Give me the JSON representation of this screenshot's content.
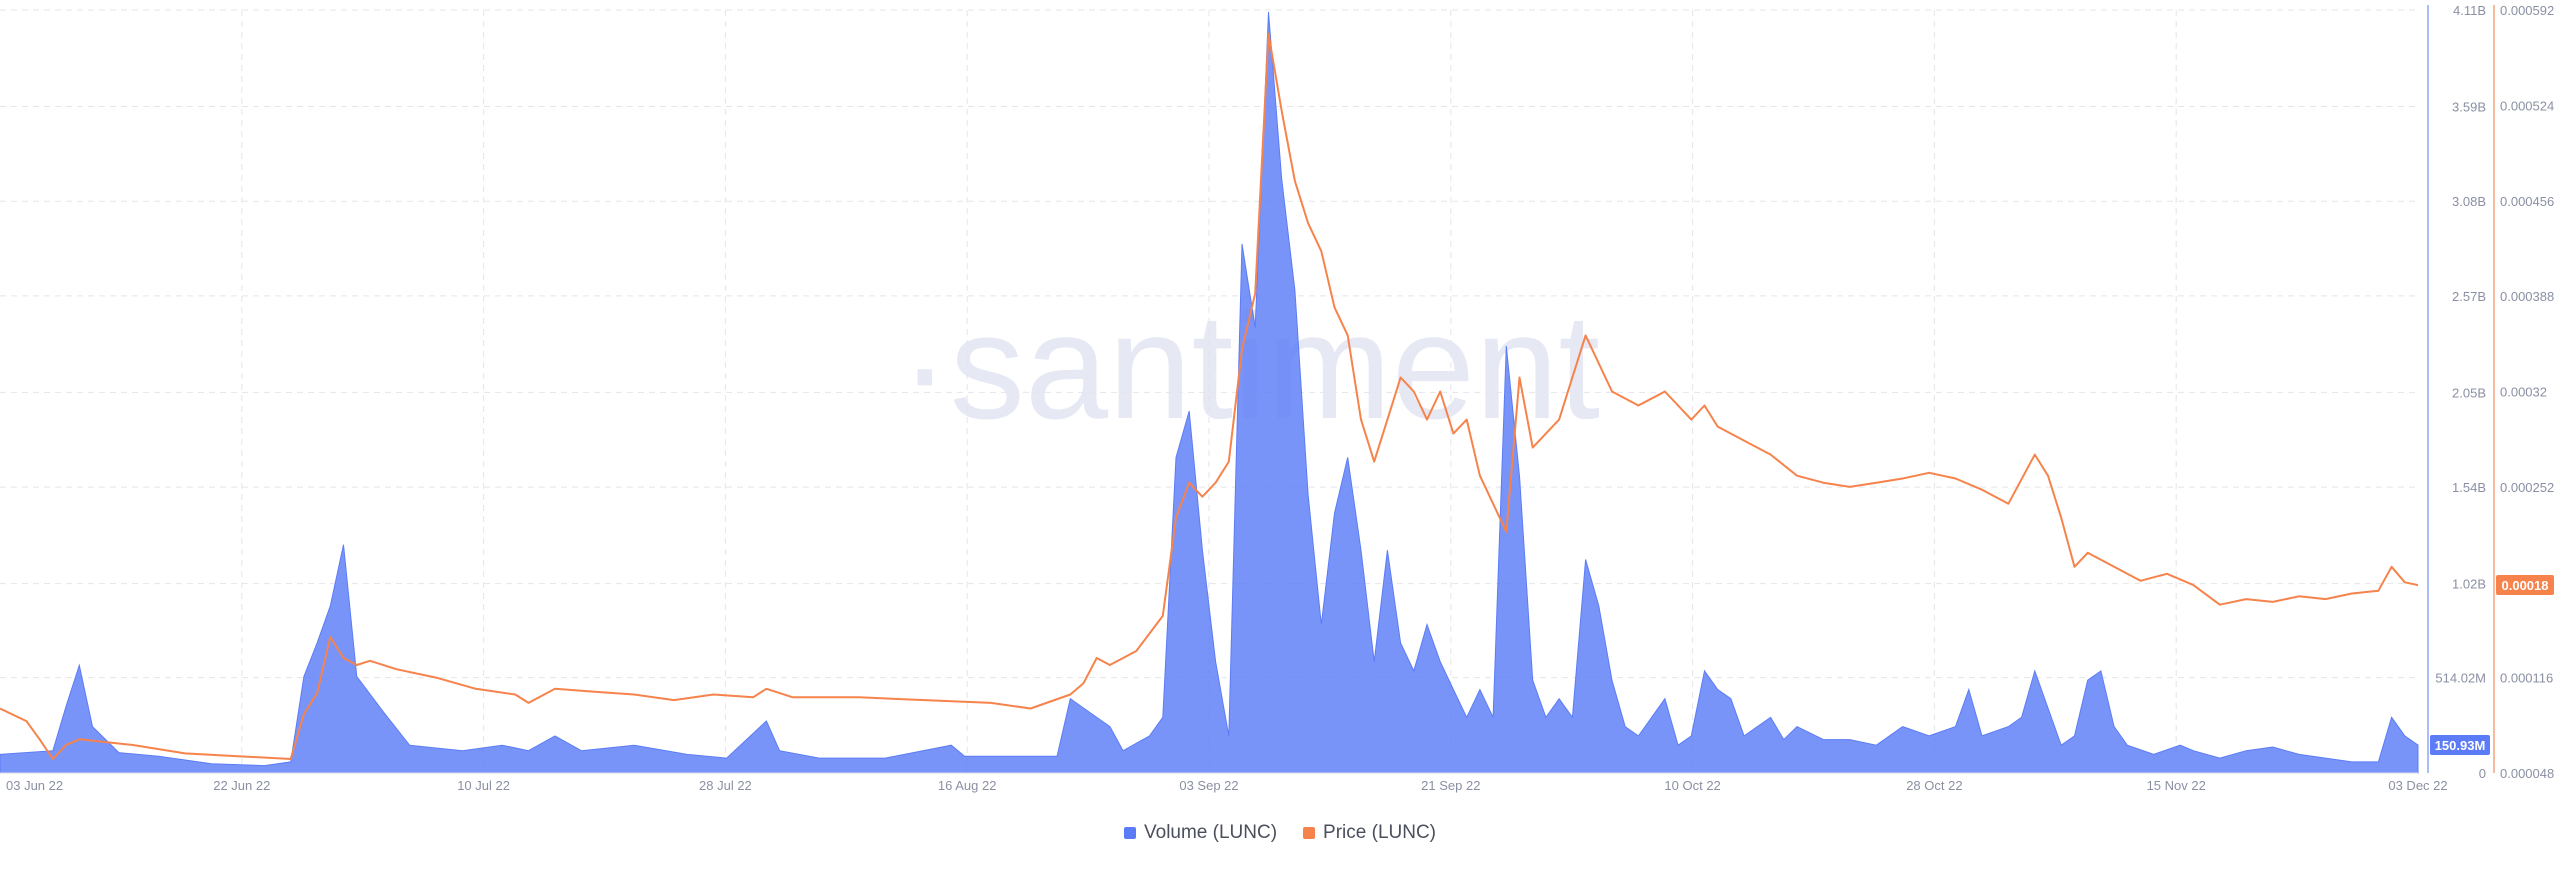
{
  "watermark": "·santiment",
  "chart_data": {
    "type": "area",
    "dual_axis": true,
    "x_tick_labels": [
      "03 Jun 22",
      "22 Jun 22",
      "10 Jul 22",
      "28 Jul 22",
      "16 Aug 22",
      "03 Sep 22",
      "21 Sep 22",
      "10 Oct 22",
      "28 Oct 22",
      "15 Nov 22",
      "03 Dec 22"
    ],
    "x_range": [
      0,
      183
    ],
    "volume_axis": {
      "side": "right-inner",
      "ticks": [
        0,
        514020000,
        1020000000,
        1540000000,
        2050000000,
        2570000000,
        3080000000,
        3590000000,
        4110000000
      ],
      "tick_labels": [
        "0",
        "514.02M",
        "1.02B",
        "1.54B",
        "2.05B",
        "2.57B",
        "3.08B",
        "3.59B",
        "4.11B"
      ],
      "ylim": [
        0,
        4110000000
      ]
    },
    "price_axis": {
      "side": "right-outer",
      "ticks": [
        4.8e-05,
        0.000116,
        0.000184,
        0.000252,
        0.00032,
        0.000388,
        0.000456,
        0.000524,
        0.000592
      ],
      "tick_labels": [
        "0.000048",
        "0.000116",
        "",
        "0.000252",
        "0.00032",
        "0.000388",
        "0.000456",
        "0.000524",
        "0.000592"
      ],
      "ylim": [
        4.8e-05,
        0.000592
      ]
    },
    "grid": true,
    "legend_position": "bottom-center",
    "series": [
      {
        "name": "Volume (LUNC)",
        "kind": "area",
        "color": "#5b7cf6",
        "current_label": "150.93M",
        "points": [
          [
            0,
            100000000
          ],
          [
            4,
            120000000
          ],
          [
            5,
            360000000
          ],
          [
            6,
            580000000
          ],
          [
            7,
            250000000
          ],
          [
            9,
            110000000
          ],
          [
            12,
            90000000
          ],
          [
            16,
            50000000
          ],
          [
            20,
            40000000
          ],
          [
            22,
            60000000
          ],
          [
            23,
            520000000
          ],
          [
            24,
            700000000
          ],
          [
            25,
            900000000
          ],
          [
            26,
            1230000000
          ],
          [
            27,
            520000000
          ],
          [
            29,
            330000000
          ],
          [
            31,
            150000000
          ],
          [
            35,
            120000000
          ],
          [
            38,
            150000000
          ],
          [
            40,
            120000000
          ],
          [
            42,
            200000000
          ],
          [
            44,
            120000000
          ],
          [
            48,
            150000000
          ],
          [
            52,
            100000000
          ],
          [
            55,
            80000000
          ],
          [
            58,
            280000000
          ],
          [
            59,
            120000000
          ],
          [
            62,
            80000000
          ],
          [
            67,
            80000000
          ],
          [
            72,
            150000000
          ],
          [
            73,
            90000000
          ],
          [
            80,
            90000000
          ],
          [
            81,
            400000000
          ],
          [
            82,
            350000000
          ],
          [
            84,
            250000000
          ],
          [
            85,
            120000000
          ],
          [
            87,
            200000000
          ],
          [
            88,
            300000000
          ],
          [
            89,
            1700000000
          ],
          [
            90,
            1950000000
          ],
          [
            91,
            1200000000
          ],
          [
            92,
            600000000
          ],
          [
            93,
            200000000
          ],
          [
            94,
            2850000000
          ],
          [
            95,
            2400000000
          ],
          [
            96,
            4100000000
          ],
          [
            97,
            3200000000
          ],
          [
            98,
            2600000000
          ],
          [
            99,
            1500000000
          ],
          [
            100,
            800000000
          ],
          [
            101,
            1400000000
          ],
          [
            102,
            1700000000
          ],
          [
            103,
            1200000000
          ],
          [
            104,
            600000000
          ],
          [
            105,
            1200000000
          ],
          [
            106,
            700000000
          ],
          [
            107,
            550000000
          ],
          [
            108,
            800000000
          ],
          [
            109,
            600000000
          ],
          [
            110,
            450000000
          ],
          [
            111,
            300000000
          ],
          [
            112,
            450000000
          ],
          [
            113,
            300000000
          ],
          [
            114,
            2300000000
          ],
          [
            115,
            1600000000
          ],
          [
            116,
            500000000
          ],
          [
            117,
            300000000
          ],
          [
            118,
            400000000
          ],
          [
            119,
            300000000
          ],
          [
            120,
            1150000000
          ],
          [
            121,
            900000000
          ],
          [
            122,
            500000000
          ],
          [
            123,
            250000000
          ],
          [
            124,
            200000000
          ],
          [
            126,
            400000000
          ],
          [
            127,
            150000000
          ],
          [
            128,
            200000000
          ],
          [
            129,
            550000000
          ],
          [
            130,
            450000000
          ],
          [
            131,
            400000000
          ],
          [
            132,
            200000000
          ],
          [
            134,
            300000000
          ],
          [
            135,
            180000000
          ],
          [
            136,
            250000000
          ],
          [
            138,
            180000000
          ],
          [
            140,
            180000000
          ],
          [
            142,
            150000000
          ],
          [
            144,
            250000000
          ],
          [
            146,
            200000000
          ],
          [
            148,
            250000000
          ],
          [
            149,
            450000000
          ],
          [
            150,
            200000000
          ],
          [
            152,
            250000000
          ],
          [
            153,
            300000000
          ],
          [
            154,
            550000000
          ],
          [
            155,
            350000000
          ],
          [
            156,
            150000000
          ],
          [
            157,
            200000000
          ],
          [
            158,
            500000000
          ],
          [
            159,
            550000000
          ],
          [
            160,
            250000000
          ],
          [
            161,
            150000000
          ],
          [
            163,
            100000000
          ],
          [
            165,
            150000000
          ],
          [
            166,
            120000000
          ],
          [
            168,
            80000000
          ],
          [
            170,
            120000000
          ],
          [
            172,
            140000000
          ],
          [
            174,
            100000000
          ],
          [
            176,
            80000000
          ],
          [
            178,
            60000000
          ],
          [
            180,
            60000000
          ],
          [
            181,
            300000000
          ],
          [
            182,
            200000000
          ],
          [
            183,
            150930000
          ]
        ]
      },
      {
        "name": "Price (LUNC)",
        "kind": "line",
        "color": "#f6834b",
        "current_label": "0.00018",
        "points": [
          [
            0,
            9.4e-05
          ],
          [
            2,
            8.5e-05
          ],
          [
            3,
            7.2e-05
          ],
          [
            4,
            5.8e-05
          ],
          [
            5,
            6.8e-05
          ],
          [
            6,
            7.2e-05
          ],
          [
            10,
            6.8e-05
          ],
          [
            14,
            6.2e-05
          ],
          [
            18,
            6e-05
          ],
          [
            22,
            5.8e-05
          ],
          [
            23,
            9e-05
          ],
          [
            24,
            0.000105
          ],
          [
            25,
            0.000145
          ],
          [
            26,
            0.00013
          ],
          [
            27,
            0.000125
          ],
          [
            28,
            0.000128
          ],
          [
            30,
            0.000122
          ],
          [
            33,
            0.000116
          ],
          [
            36,
            0.000108
          ],
          [
            39,
            0.000104
          ],
          [
            40,
            9.8e-05
          ],
          [
            42,
            0.000108
          ],
          [
            45,
            0.000106
          ],
          [
            48,
            0.000104
          ],
          [
            51,
            0.0001
          ],
          [
            54,
            0.000104
          ],
          [
            57,
            0.000102
          ],
          [
            58,
            0.000108
          ],
          [
            60,
            0.000102
          ],
          [
            65,
            0.000102
          ],
          [
            70,
            0.0001
          ],
          [
            75,
            9.8e-05
          ],
          [
            78,
            9.4e-05
          ],
          [
            81,
            0.000104
          ],
          [
            82,
            0.000112
          ],
          [
            83,
            0.00013
          ],
          [
            84,
            0.000125
          ],
          [
            86,
            0.000135
          ],
          [
            88,
            0.00016
          ],
          [
            89,
            0.00023
          ],
          [
            90,
            0.000255
          ],
          [
            91,
            0.000245
          ],
          [
            92,
            0.000255
          ],
          [
            93,
            0.00027
          ],
          [
            94,
            0.00035
          ],
          [
            95,
            0.00039
          ],
          [
            96,
            0.000575
          ],
          [
            97,
            0.00052
          ],
          [
            98,
            0.00047
          ],
          [
            99,
            0.00044
          ],
          [
            100,
            0.00042
          ],
          [
            101,
            0.00038
          ],
          [
            102,
            0.00036
          ],
          [
            103,
            0.0003
          ],
          [
            104,
            0.00027
          ],
          [
            105,
            0.0003
          ],
          [
            106,
            0.00033
          ],
          [
            107,
            0.00032
          ],
          [
            108,
            0.0003
          ],
          [
            109,
            0.00032
          ],
          [
            110,
            0.00029
          ],
          [
            111,
            0.0003
          ],
          [
            112,
            0.00026
          ],
          [
            113,
            0.00024
          ],
          [
            114,
            0.00022
          ],
          [
            115,
            0.00033
          ],
          [
            116,
            0.00028
          ],
          [
            117,
            0.00029
          ],
          [
            118,
            0.0003
          ],
          [
            120,
            0.00036
          ],
          [
            121,
            0.00034
          ],
          [
            122,
            0.00032
          ],
          [
            124,
            0.00031
          ],
          [
            126,
            0.00032
          ],
          [
            128,
            0.0003
          ],
          [
            129,
            0.00031
          ],
          [
            130,
            0.000295
          ],
          [
            132,
            0.000285
          ],
          [
            134,
            0.000275
          ],
          [
            136,
            0.00026
          ],
          [
            138,
            0.000255
          ],
          [
            140,
            0.000252
          ],
          [
            142,
            0.000255
          ],
          [
            144,
            0.000258
          ],
          [
            146,
            0.000262
          ],
          [
            148,
            0.000258
          ],
          [
            150,
            0.00025
          ],
          [
            152,
            0.00024
          ],
          [
            154,
            0.000275
          ],
          [
            155,
            0.00026
          ],
          [
            156,
            0.00023
          ],
          [
            157,
            0.000195
          ],
          [
            158,
            0.000205
          ],
          [
            160,
            0.000195
          ],
          [
            162,
            0.000185
          ],
          [
            164,
            0.00019
          ],
          [
            166,
            0.000182
          ],
          [
            168,
            0.000168
          ],
          [
            170,
            0.000172
          ],
          [
            172,
            0.00017
          ],
          [
            174,
            0.000174
          ],
          [
            176,
            0.000172
          ],
          [
            178,
            0.000176
          ],
          [
            180,
            0.000178
          ],
          [
            181,
            0.000195
          ],
          [
            182,
            0.000184
          ],
          [
            183,
            0.000182
          ]
        ]
      }
    ]
  },
  "legend": {
    "volume_label": "Volume (LUNC)",
    "price_label": "Price (LUNC)",
    "volume_color": "#5b7cf6",
    "price_color": "#f6834b"
  },
  "colors": {
    "grid": "#e3e5ea",
    "axis_text": "#8a90a3",
    "volume_axis": "#8ea6f7",
    "price_axis": "#f6a37f",
    "watermark": "#e6e8f4"
  }
}
